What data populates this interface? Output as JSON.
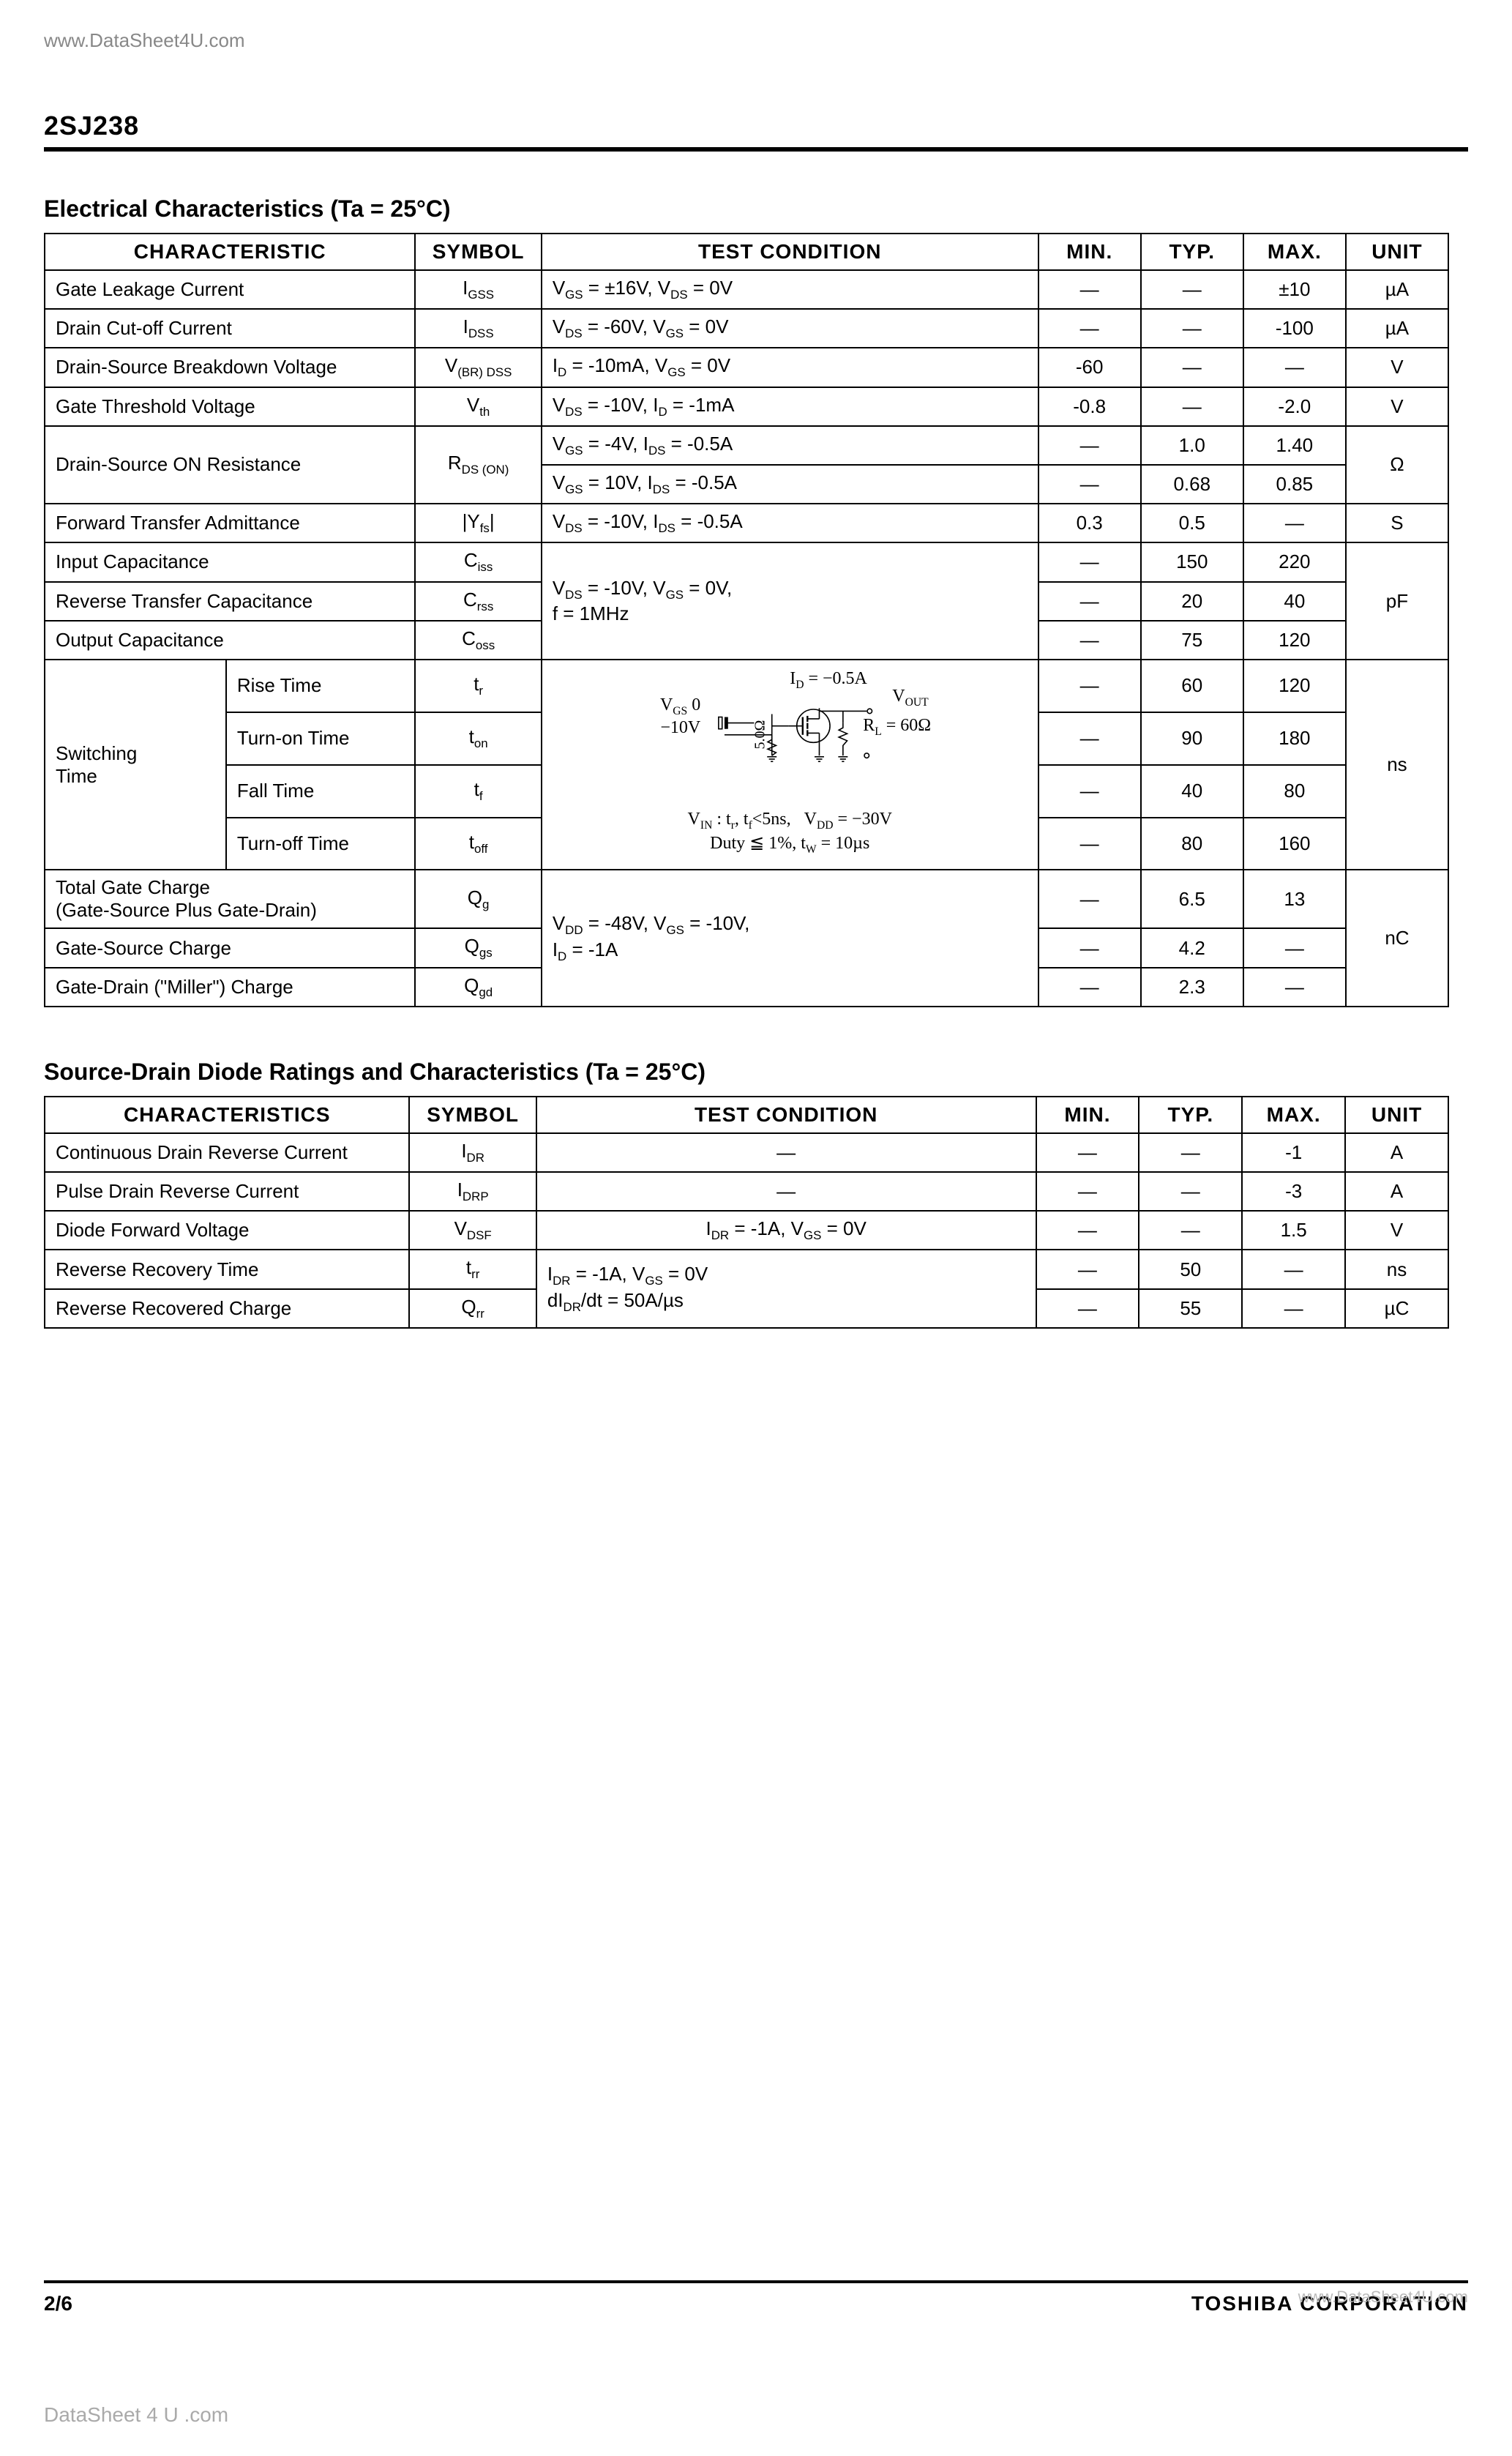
{
  "watermark_top": "www.DataSheet4U.com",
  "part_number": "2SJ238",
  "section1_title": "Electrical Characteristics (Ta = 25°C)",
  "headers": {
    "characteristic": "CHARACTERISTIC",
    "characteristics": "CHARACTERISTICS",
    "symbol": "SYMBOL",
    "test_condition": "TEST CONDITION",
    "min": "MIN.",
    "typ": "TYP.",
    "max": "MAX.",
    "unit": "UNIT"
  },
  "t1": {
    "rows": [
      {
        "char": "Gate Leakage Current",
        "sym": "I",
        "sub": "GSS",
        "cond": "V_GS = ±16V, V_DS = 0V",
        "min": "—",
        "typ": "—",
        "max": "±10",
        "unit": "µA",
        "unit_rowspan": 1
      },
      {
        "char": "Drain Cut-off Current",
        "sym": "I",
        "sub": "DSS",
        "cond": "V_DS = -60V, V_GS = 0V",
        "min": "—",
        "typ": "—",
        "max": "-100",
        "unit": "µA",
        "unit_rowspan": 1
      },
      {
        "char": "Drain-Source Breakdown Voltage",
        "sym": "V",
        "sub": "(BR) DSS",
        "cond": "I_D = -10mA, V_GS = 0V",
        "min": "-60",
        "typ": "—",
        "max": "—",
        "unit": "V",
        "unit_rowspan": 1
      },
      {
        "char": "Gate Threshold Voltage",
        "sym": "V",
        "sub": "th",
        "cond": "V_DS = -10V, I_D = -1mA",
        "min": "-0.8",
        "typ": "—",
        "max": "-2.0",
        "unit": "V",
        "unit_rowspan": 1
      }
    ],
    "rds": {
      "char": "Drain-Source ON Resistance",
      "sym": "R",
      "sub": "DS (ON)",
      "cond1": "V_GS = -4V, I_DS = -0.5A",
      "min1": "—",
      "typ1": "1.0",
      "max1": "1.40",
      "cond2": "V_GS = 10V, I_DS = -0.5A",
      "min2": "—",
      "typ2": "0.68",
      "max2": "0.85",
      "unit": "Ω"
    },
    "yfs": {
      "char": "Forward Transfer Admittance",
      "sym": "|Y",
      "sub": "fs",
      "sym_tail": "|",
      "cond": "V_DS = -10V, I_DS = -0.5A",
      "min": "0.3",
      "typ": "0.5",
      "max": "—",
      "unit": "S"
    },
    "cap": {
      "cond": "V_DS = -10V, V_GS = 0V,\nf = 1MHz",
      "unit": "pF",
      "items": [
        {
          "char": "Input Capacitance",
          "sym": "C",
          "sub": "iss",
          "min": "—",
          "typ": "150",
          "max": "220"
        },
        {
          "char": "Reverse Transfer Capacitance",
          "sym": "C",
          "sub": "rss",
          "min": "—",
          "typ": "20",
          "max": "40"
        },
        {
          "char": "Output Capacitance",
          "sym": "C",
          "sub": "oss",
          "min": "—",
          "typ": "75",
          "max": "120"
        }
      ]
    },
    "switching": {
      "group_label": "Switching\nTime",
      "unit": "ns",
      "items": [
        {
          "char": "Rise Time",
          "sym": "t",
          "sub": "r",
          "min": "—",
          "typ": "60",
          "max": "120"
        },
        {
          "char": "Turn-on Time",
          "sym": "t",
          "sub": "on",
          "min": "—",
          "typ": "90",
          "max": "180"
        },
        {
          "char": "Fall Time",
          "sym": "t",
          "sub": "f",
          "min": "—",
          "typ": "40",
          "max": "80"
        },
        {
          "char": "Turn-off Time",
          "sym": "t",
          "sub": "off",
          "min": "—",
          "typ": "80",
          "max": "160"
        }
      ],
      "circuit": {
        "id_label": "I_D = −0.5A",
        "vout_label": "V_OUT",
        "vgs_label": "V_GS 0\n−10V",
        "r5": "5.0Ω",
        "rl": "R_L = 60Ω",
        "vin": "V_IN : t_r, t_f<5ns,",
        "vdd": "V_DD = −30V",
        "duty": "Duty ≦ 1%,  t_W = 10µs"
      }
    },
    "charge": {
      "cond": "V_DD = -48V, V_GS = -10V,\nI_D = -1A",
      "unit": "nC",
      "items": [
        {
          "char": "Total Gate Charge\n(Gate-Source Plus Gate-Drain)",
          "sym": "Q",
          "sub": "g",
          "min": "—",
          "typ": "6.5",
          "max": "13"
        },
        {
          "char": "Gate-Source Charge",
          "sym": "Q",
          "sub": "gs",
          "min": "—",
          "typ": "4.2",
          "max": "—"
        },
        {
          "char": "Gate-Drain (\"Miller\") Charge",
          "sym": "Q",
          "sub": "gd",
          "min": "—",
          "typ": "2.3",
          "max": "—"
        }
      ]
    }
  },
  "section2_title": "Source-Drain Diode Ratings and Characteristics (Ta = 25°C)",
  "t2": {
    "rows": [
      {
        "char": "Continuous Drain Reverse Current",
        "sym": "I",
        "sub": "DR",
        "cond": "—",
        "min": "—",
        "typ": "—",
        "max": "-1",
        "unit": "A"
      },
      {
        "char": "Pulse Drain Reverse Current",
        "sym": "I",
        "sub": "DRP",
        "cond": "—",
        "min": "—",
        "typ": "—",
        "max": "-3",
        "unit": "A"
      },
      {
        "char": "Diode Forward Voltage",
        "sym": "V",
        "sub": "DSF",
        "cond": "I_DR = -1A, V_GS = 0V",
        "min": "—",
        "typ": "—",
        "max": "1.5",
        "unit": "V"
      }
    ],
    "rr": {
      "cond": "I_DR = -1A, V_GS = 0V\ndI_DR/dt = 50A/µs",
      "items": [
        {
          "char": "Reverse Recovery Time",
          "sym": "t",
          "sub": "rr",
          "min": "—",
          "typ": "50",
          "max": "—",
          "unit": "ns"
        },
        {
          "char": "Reverse Recovered Charge",
          "sym": "Q",
          "sub": "rr",
          "min": "—",
          "typ": "55",
          "max": "—",
          "unit": "µC"
        }
      ]
    }
  },
  "footer": {
    "page": "2/6",
    "corp": "TOSHIBA CORPORATION",
    "wm": "www.DataSheet4U.com"
  },
  "bottom_watermark": "DataSheet 4 U .com"
}
